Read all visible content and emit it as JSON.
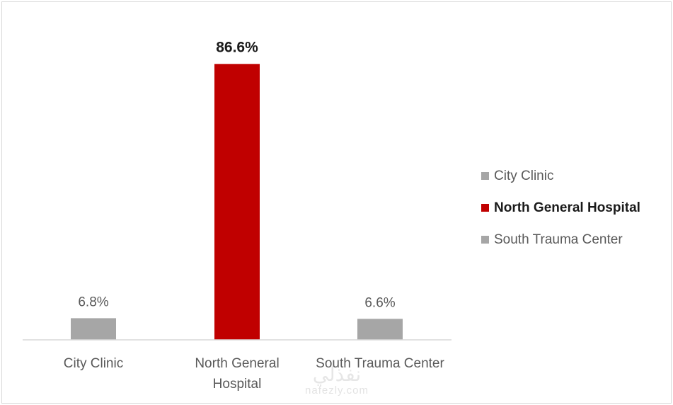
{
  "chart_data": {
    "type": "bar",
    "categories": [
      "City Clinic",
      "North General Hospital",
      "South Trauma Center"
    ],
    "category_lines": [
      [
        "City Clinic"
      ],
      [
        "North General",
        "Hospital"
      ],
      [
        "South Trauma Center"
      ]
    ],
    "values": [
      6.8,
      86.6,
      6.6
    ],
    "value_labels": [
      "6.8%",
      "86.6%",
      "6.6%"
    ],
    "unit": "%",
    "highlight_index": 1,
    "ylim": [
      0,
      100
    ],
    "grid": false,
    "legend_position": "right",
    "colors": {
      "default": "#a6a6a6",
      "highlight": "#c00000",
      "axis": "#d9d9d9",
      "label": "#595959",
      "highlight_label": "#1a1a1a"
    }
  },
  "legend": {
    "items": [
      {
        "label": "City Clinic",
        "color": "#a6a6a6",
        "highlight": false
      },
      {
        "label": "North General Hospital",
        "color": "#c00000",
        "highlight": true
      },
      {
        "label": "South Trauma Center",
        "color": "#a6a6a6",
        "highlight": false
      }
    ]
  },
  "watermark": {
    "mark": "نفذلي",
    "text": "nafezly.com"
  }
}
